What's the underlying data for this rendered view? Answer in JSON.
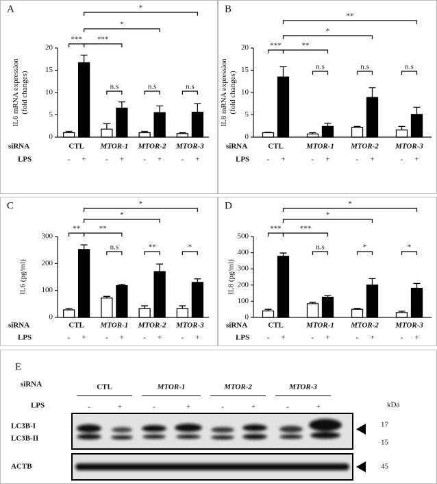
{
  "chart_data": [
    {
      "type": "bar",
      "panel_label": "A",
      "y_label": [
        "IL6 mRNA expression",
        "(fold changes)"
      ],
      "categories": [
        "CTL",
        "MTOR-1",
        "MTOR-2",
        "MTOR-3"
      ],
      "sirna_label": "siRNA",
      "lps_label": "LPS",
      "lps_signs": [
        "-",
        "+"
      ],
      "series": [
        {
          "color": "#ffffff",
          "values": [
            1,
            1.8,
            1,
            0.8
          ],
          "errors": [
            0.3,
            1.2,
            0.3,
            0.2
          ]
        },
        {
          "color": "#000000",
          "values": [
            16.7,
            6.5,
            5.5,
            5.6
          ],
          "errors": [
            1.7,
            1.4,
            1.5,
            1.9
          ]
        }
      ],
      "ylim": [
        0,
        20
      ],
      "yticks": [
        0,
        5,
        10,
        15,
        20
      ],
      "annotations": [
        "***",
        "***",
        "n.s",
        "n.s",
        "n.s",
        "*",
        "*"
      ]
    },
    {
      "type": "bar",
      "panel_label": "B",
      "y_label": [
        "IL8 mRNA expression",
        "(fold changes)"
      ],
      "categories": [
        "CTL",
        "MTOR-1",
        "MTOR-2",
        "MTOR-3"
      ],
      "sirna_label": "siRNA",
      "lps_label": "LPS",
      "lps_signs": [
        "-",
        "+"
      ],
      "series": [
        {
          "color": "#ffffff",
          "values": [
            1,
            0.7,
            2.2,
            1.6
          ],
          "errors": [
            0.1,
            0.3,
            0.2,
            0.8
          ]
        },
        {
          "color": "#000000",
          "values": [
            13.5,
            2.4,
            8.9,
            5.1
          ],
          "errors": [
            2.3,
            0.7,
            2.2,
            1.6
          ]
        }
      ],
      "ylim": [
        0,
        20
      ],
      "yticks": [
        0,
        5,
        10,
        15,
        20
      ],
      "annotations": [
        "***",
        "**",
        "n.s",
        "n.s",
        "n.s",
        "*",
        "**"
      ]
    },
    {
      "type": "bar",
      "panel_label": "C",
      "y_label": [
        "IL6 (pg/ml)"
      ],
      "categories": [
        "CTL",
        "MTOR-1",
        "MTOR-2",
        "MTOR-3"
      ],
      "sirna_label": "siRNA",
      "lps_label": "LPS",
      "lps_signs": [
        "-",
        "+"
      ],
      "series": [
        {
          "color": "#ffffff",
          "values": [
            28,
            72,
            33,
            33
          ],
          "errors": [
            5,
            6,
            10,
            10
          ]
        },
        {
          "color": "#000000",
          "values": [
            252,
            118,
            170,
            130
          ],
          "errors": [
            17,
            5,
            28,
            13
          ]
        }
      ],
      "ylim": [
        0,
        300
      ],
      "yticks": [
        0,
        100,
        200,
        300
      ],
      "annotations": [
        "**",
        "**",
        "n.s",
        "**",
        "*",
        "*",
        "*"
      ]
    },
    {
      "type": "bar",
      "panel_label": "D",
      "y_label": [
        "IL8 (pg/ml)"
      ],
      "categories": [
        "CTL",
        "MTOR-1",
        "MTOR-2",
        "MTOR-3"
      ],
      "sirna_label": "siRNA",
      "lps_label": "LPS",
      "lps_signs": [
        "-",
        "+"
      ],
      "series": [
        {
          "color": "#ffffff",
          "values": [
            40,
            85,
            50,
            30
          ],
          "errors": [
            10,
            8,
            6,
            8
          ]
        },
        {
          "color": "#000000",
          "values": [
            378,
            125,
            200,
            180
          ],
          "errors": [
            20,
            10,
            40,
            30
          ]
        }
      ],
      "ylim": [
        0,
        500
      ],
      "yticks": [
        0,
        100,
        200,
        300,
        400,
        500
      ],
      "annotations": [
        "***",
        "***",
        "n.s",
        "*",
        "*",
        "*",
        "*"
      ]
    }
  ],
  "blot": {
    "panel_label": "E",
    "sirna_label": "siRNA",
    "groups": [
      "CTL",
      "MTOR-1",
      "MTOR-2",
      "MTOR-3"
    ],
    "lps_label": "LPS",
    "lps_signs": [
      "-",
      "+"
    ],
    "unit": "kDa",
    "bands": [
      {
        "name": "LC3B-I",
        "kda": 17
      },
      {
        "name": "LC3B-II",
        "kda": 15
      },
      {
        "name": "ACTB",
        "kda": 45
      }
    ]
  }
}
